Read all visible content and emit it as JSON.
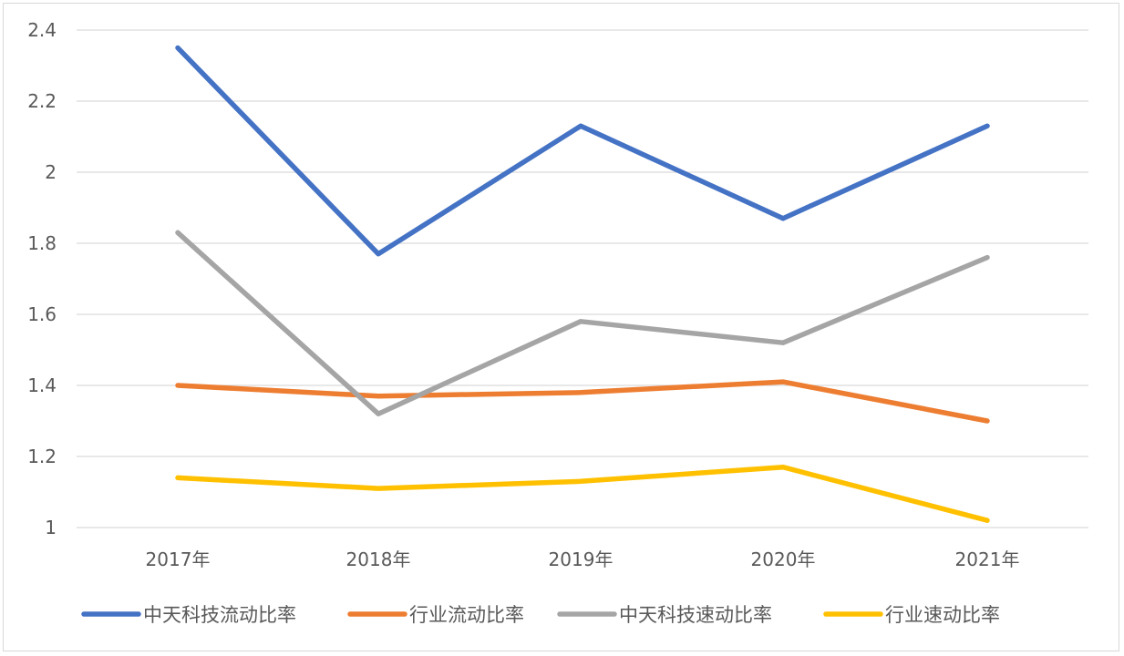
{
  "chart_data": {
    "type": "line",
    "title": "",
    "xlabel": "",
    "ylabel": "",
    "categories": [
      "2017年",
      "2018年",
      "2019年",
      "2020年",
      "2021年"
    ],
    "ylim": [
      1,
      2.4
    ],
    "yticks": [
      1,
      1.2,
      1.4,
      1.6,
      1.8,
      2,
      2.2,
      2.4
    ],
    "ytick_labels": [
      "1",
      "1.2",
      "1.4",
      "1.6",
      "1.8",
      "2",
      "2.2",
      "2.4"
    ],
    "grid": "horizontal",
    "legend": "bottom",
    "series": [
      {
        "name": "中天科技流动比率",
        "color": "#4472c4",
        "values": [
          2.35,
          1.77,
          2.13,
          1.87,
          2.13
        ]
      },
      {
        "name": "行业流动比率",
        "color": "#ed7d31",
        "values": [
          1.4,
          1.37,
          1.38,
          1.41,
          1.3
        ]
      },
      {
        "name": "中天科技速动比率",
        "color": "#a5a5a5",
        "values": [
          1.83,
          1.32,
          1.58,
          1.52,
          1.76
        ]
      },
      {
        "name": "行业速动比率",
        "color": "#ffc000",
        "values": [
          1.14,
          1.11,
          1.13,
          1.17,
          1.02
        ]
      }
    ]
  }
}
